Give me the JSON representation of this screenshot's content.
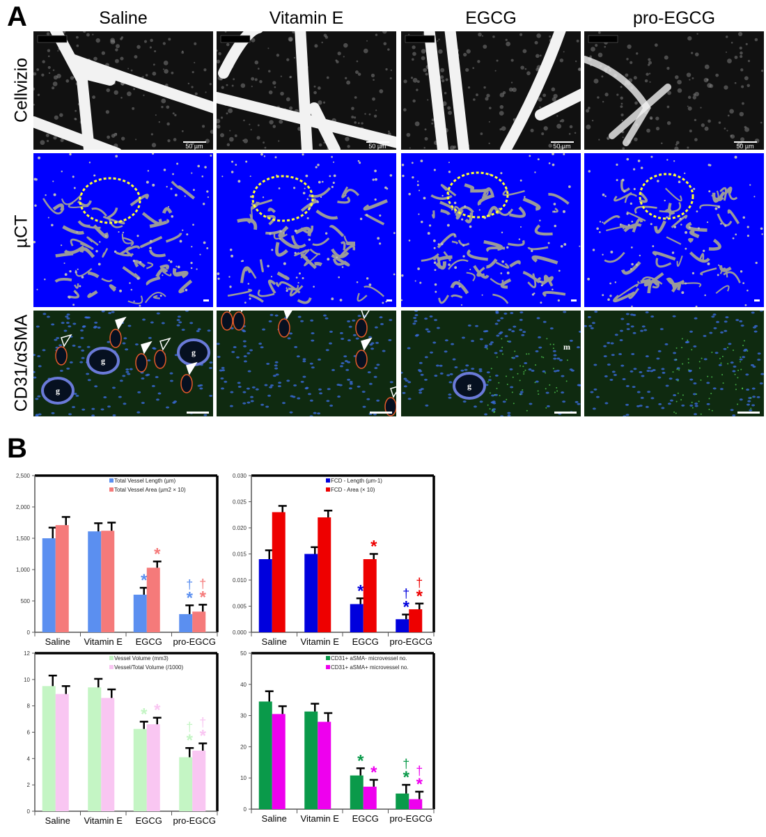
{
  "panel_a": {
    "letter": "A",
    "columns": [
      "Saline",
      "Vitamin E",
      "EGCG",
      "pro-EGCG"
    ],
    "rows": [
      "Cellvizio",
      "µCT",
      "CD31/αSMA"
    ],
    "scale_bar_label": "50 µm",
    "histology_labels": {
      "gland": "g",
      "muscle": "m"
    },
    "colors": {
      "uct_background": "#0000ff",
      "roi_circle": "#ffff33",
      "histology_background": "#0f2a10"
    }
  },
  "panel_b": {
    "letter": "B"
  },
  "chart_data": [
    {
      "type": "bar",
      "categories": [
        "Saline",
        "Vitamin E",
        "EGCG",
        "pro-EGCG"
      ],
      "ylim": [
        0,
        2500
      ],
      "yticks": [
        "0",
        "500",
        "1,000",
        "1,500",
        "2,000",
        "2,500"
      ],
      "ytick_values": [
        0,
        500,
        1000,
        1500,
        2000,
        2500
      ],
      "legend_placement": "top-right",
      "series": [
        {
          "name": "Total Vessel Length (µm)",
          "color": "#5b8ff0",
          "values": [
            1500,
            1610,
            600,
            290
          ],
          "errors": [
            170,
            130,
            110,
            140
          ],
          "marks": [
            "",
            "",
            "*",
            "*†"
          ]
        },
        {
          "name": "Total Vessel Area (µm2 × 10)",
          "color": "#f57a7a",
          "values": [
            1710,
            1620,
            1030,
            330
          ],
          "errors": [
            130,
            130,
            100,
            110
          ],
          "marks": [
            "",
            "",
            "*",
            "*†"
          ]
        }
      ]
    },
    {
      "type": "bar",
      "categories": [
        "Saline",
        "Vitamin E",
        "EGCG",
        "pro-EGCG"
      ],
      "ylim": [
        0,
        0.03
      ],
      "yticks": [
        "0.000",
        "0.005",
        "0.010",
        "0.015",
        "0.020",
        "0.025",
        "0.030"
      ],
      "ytick_values": [
        0,
        0.005,
        0.01,
        0.015,
        0.02,
        0.025,
        0.03
      ],
      "legend_placement": "top-right",
      "series": [
        {
          "name": "FCD - Length (µm-1)",
          "color": "#0000dd",
          "values": [
            0.014,
            0.015,
            0.0054,
            0.0025
          ],
          "errors": [
            0.0017,
            0.0013,
            0.0011,
            0.0009
          ],
          "marks": [
            "",
            "",
            "*",
            "*†"
          ]
        },
        {
          "name": "FCD - Area (× 10)",
          "color": "#ee0000",
          "values": [
            0.023,
            0.022,
            0.014,
            0.0044
          ],
          "errors": [
            0.0012,
            0.0013,
            0.001,
            0.0011
          ],
          "marks": [
            "",
            "",
            "*",
            "*†"
          ]
        }
      ]
    },
    {
      "type": "bar",
      "categories": [
        "Saline",
        "Vitamin E",
        "EGCG",
        "pro-EGCG"
      ],
      "ylim": [
        0,
        12
      ],
      "yticks": [
        "0",
        "2",
        "4",
        "6",
        "8",
        "10",
        "12"
      ],
      "ytick_values": [
        0,
        2,
        4,
        6,
        8,
        10,
        12
      ],
      "legend_placement": "top-right",
      "series": [
        {
          "name": "Vessel Volume (mm3)",
          "color": "#c4f5c4",
          "values": [
            9.5,
            9.4,
            6.25,
            4.1
          ],
          "errors": [
            0.8,
            0.65,
            0.55,
            0.7
          ],
          "marks": [
            "",
            "",
            "*",
            "*†"
          ]
        },
        {
          "name": "Vessel/Total Volume (/1000)",
          "color": "#f9c6f2",
          "values": [
            8.9,
            8.6,
            6.6,
            4.6
          ],
          "errors": [
            0.6,
            0.65,
            0.5,
            0.55
          ],
          "marks": [
            "",
            "",
            "*",
            "*†"
          ]
        }
      ]
    },
    {
      "type": "bar",
      "categories": [
        "Saline",
        "Vitamin E",
        "EGCG",
        "pro-EGCG"
      ],
      "ylim": [
        0,
        50
      ],
      "yticks": [
        "0",
        "10",
        "20",
        "30",
        "40",
        "50"
      ],
      "ytick_values": [
        0,
        10,
        20,
        30,
        40,
        50
      ],
      "legend_placement": "top-right",
      "series": [
        {
          "name": "CD31+ aSMA- microvessel no.",
          "color": "#0a9a4a",
          "values": [
            34.5,
            31.3,
            10.8,
            5
          ],
          "errors": [
            3.3,
            2.5,
            2.3,
            2.8
          ],
          "marks": [
            "",
            "",
            "*",
            "*†"
          ]
        },
        {
          "name": "CD31+ aSMA+ microvessel no.",
          "color": "#ee00ee",
          "values": [
            30.5,
            28,
            7.2,
            3.2
          ],
          "errors": [
            2.5,
            2.8,
            2.2,
            2.4
          ],
          "marks": [
            "",
            "",
            "*",
            "*†"
          ]
        }
      ]
    }
  ]
}
